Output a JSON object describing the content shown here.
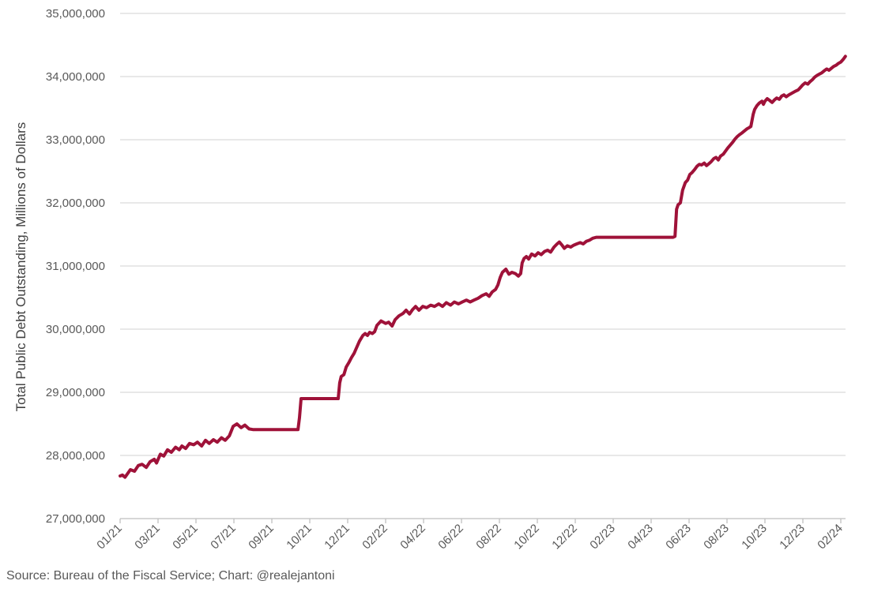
{
  "chart_data": {
    "type": "line",
    "title": "",
    "xlabel": "",
    "ylabel": "Total Public Debt Outstanding, Millions of Dollars",
    "source_note": "Source: Bureau of the Fiscal Service; Chart: @realejantoni",
    "line_color": "#9F1239",
    "grid_color": "#D9D9D9",
    "axis_color": "#BFBFBF",
    "tick_label_color": "#595959",
    "axis_title_color": "#404040",
    "ylim": [
      27000000,
      35000000
    ],
    "grid": true,
    "legend": "none",
    "yticks": [
      {
        "value": 35000000,
        "label": "35,000,000"
      },
      {
        "value": 34000000,
        "label": "34,000,000"
      },
      {
        "value": 33000000,
        "label": "33,000,000"
      },
      {
        "value": 32000000,
        "label": "32,000,000"
      },
      {
        "value": 31000000,
        "label": "31,000,000"
      },
      {
        "value": 30000000,
        "label": "30,000,000"
      },
      {
        "value": 29000000,
        "label": "29,000,000"
      },
      {
        "value": 28000000,
        "label": "28,000,000"
      },
      {
        "value": 27000000,
        "label": "27,000,000"
      }
    ],
    "xticks": [
      "01/21",
      "03/21",
      "05/21",
      "07/21",
      "09/21",
      "10/21",
      "12/21",
      "02/22",
      "04/22",
      "06/22",
      "08/22",
      "10/22",
      "12/22",
      "02/23",
      "04/23",
      "06/23",
      "08/23",
      "10/23",
      "12/23",
      "02/24"
    ],
    "series": [
      {
        "name": "Total Public Debt Outstanding",
        "points": [
          [
            0,
            27675000
          ],
          [
            0.06,
            27690000
          ],
          [
            0.13,
            27655000
          ],
          [
            0.27,
            27775000
          ],
          [
            0.38,
            27750000
          ],
          [
            0.48,
            27840000
          ],
          [
            0.58,
            27860000
          ],
          [
            0.69,
            27810000
          ],
          [
            0.79,
            27900000
          ],
          [
            0.9,
            27940000
          ],
          [
            0.96,
            27880000
          ],
          [
            1.06,
            28020000
          ],
          [
            1.15,
            27990000
          ],
          [
            1.25,
            28090000
          ],
          [
            1.35,
            28050000
          ],
          [
            1.46,
            28130000
          ],
          [
            1.56,
            28090000
          ],
          [
            1.63,
            28150000
          ],
          [
            1.73,
            28110000
          ],
          [
            1.83,
            28190000
          ],
          [
            1.94,
            28170000
          ],
          [
            2.04,
            28210000
          ],
          [
            2.15,
            28150000
          ],
          [
            2.25,
            28240000
          ],
          [
            2.35,
            28190000
          ],
          [
            2.46,
            28250000
          ],
          [
            2.56,
            28210000
          ],
          [
            2.67,
            28280000
          ],
          [
            2.77,
            28240000
          ],
          [
            2.88,
            28310000
          ],
          [
            2.98,
            28460000
          ],
          [
            3.08,
            28500000
          ],
          [
            3.19,
            28440000
          ],
          [
            3.29,
            28480000
          ],
          [
            3.4,
            28420000
          ],
          [
            3.5,
            28410000
          ],
          [
            4.69,
            28410000
          ],
          [
            4.73,
            28600000
          ],
          [
            4.77,
            28900000
          ],
          [
            5.75,
            28900000
          ],
          [
            5.79,
            29150000
          ],
          [
            5.83,
            29250000
          ],
          [
            5.9,
            29280000
          ],
          [
            5.96,
            29400000
          ],
          [
            6.04,
            29480000
          ],
          [
            6.1,
            29550000
          ],
          [
            6.17,
            29620000
          ],
          [
            6.23,
            29700000
          ],
          [
            6.31,
            29810000
          ],
          [
            6.4,
            29900000
          ],
          [
            6.46,
            29930000
          ],
          [
            6.52,
            29900000
          ],
          [
            6.58,
            29950000
          ],
          [
            6.65,
            29930000
          ],
          [
            6.71,
            29960000
          ],
          [
            6.77,
            30060000
          ],
          [
            6.88,
            30130000
          ],
          [
            7.0,
            30090000
          ],
          [
            7.08,
            30110000
          ],
          [
            7.17,
            30050000
          ],
          [
            7.25,
            30150000
          ],
          [
            7.35,
            30210000
          ],
          [
            7.46,
            30250000
          ],
          [
            7.54,
            30300000
          ],
          [
            7.63,
            30240000
          ],
          [
            7.71,
            30310000
          ],
          [
            7.79,
            30360000
          ],
          [
            7.88,
            30300000
          ],
          [
            7.98,
            30360000
          ],
          [
            8.08,
            30340000
          ],
          [
            8.19,
            30380000
          ],
          [
            8.29,
            30360000
          ],
          [
            8.4,
            30400000
          ],
          [
            8.5,
            30360000
          ],
          [
            8.6,
            30420000
          ],
          [
            8.71,
            30380000
          ],
          [
            8.81,
            30430000
          ],
          [
            8.92,
            30400000
          ],
          [
            9.02,
            30430000
          ],
          [
            9.13,
            30460000
          ],
          [
            9.23,
            30430000
          ],
          [
            9.33,
            30460000
          ],
          [
            9.44,
            30490000
          ],
          [
            9.54,
            30530000
          ],
          [
            9.65,
            30560000
          ],
          [
            9.73,
            30520000
          ],
          [
            9.81,
            30590000
          ],
          [
            9.9,
            30630000
          ],
          [
            9.96,
            30700000
          ],
          [
            10.02,
            30820000
          ],
          [
            10.08,
            30900000
          ],
          [
            10.17,
            30950000
          ],
          [
            10.25,
            30870000
          ],
          [
            10.33,
            30900000
          ],
          [
            10.42,
            30880000
          ],
          [
            10.5,
            30840000
          ],
          [
            10.56,
            30880000
          ],
          [
            10.6,
            31050000
          ],
          [
            10.65,
            31120000
          ],
          [
            10.71,
            31150000
          ],
          [
            10.77,
            31110000
          ],
          [
            10.85,
            31190000
          ],
          [
            10.94,
            31160000
          ],
          [
            11.02,
            31210000
          ],
          [
            11.1,
            31180000
          ],
          [
            11.19,
            31230000
          ],
          [
            11.27,
            31250000
          ],
          [
            11.35,
            31220000
          ],
          [
            11.44,
            31300000
          ],
          [
            11.52,
            31350000
          ],
          [
            11.58,
            31380000
          ],
          [
            11.65,
            31330000
          ],
          [
            11.71,
            31280000
          ],
          [
            11.79,
            31320000
          ],
          [
            11.88,
            31300000
          ],
          [
            11.96,
            31330000
          ],
          [
            12.04,
            31350000
          ],
          [
            12.13,
            31370000
          ],
          [
            12.21,
            31350000
          ],
          [
            12.29,
            31390000
          ],
          [
            12.38,
            31410000
          ],
          [
            12.46,
            31440000
          ],
          [
            12.56,
            31455000
          ],
          [
            14.58,
            31455000
          ],
          [
            14.63,
            31470000
          ],
          [
            14.67,
            31900000
          ],
          [
            14.71,
            31970000
          ],
          [
            14.77,
            32000000
          ],
          [
            14.83,
            32200000
          ],
          [
            14.9,
            32320000
          ],
          [
            14.96,
            32360000
          ],
          [
            15.02,
            32450000
          ],
          [
            15.08,
            32480000
          ],
          [
            15.15,
            32530000
          ],
          [
            15.21,
            32580000
          ],
          [
            15.27,
            32610000
          ],
          [
            15.33,
            32600000
          ],
          [
            15.4,
            32630000
          ],
          [
            15.46,
            32590000
          ],
          [
            15.52,
            32620000
          ],
          [
            15.58,
            32650000
          ],
          [
            15.65,
            32700000
          ],
          [
            15.71,
            32720000
          ],
          [
            15.77,
            32680000
          ],
          [
            15.83,
            32740000
          ],
          [
            15.9,
            32770000
          ],
          [
            15.96,
            32820000
          ],
          [
            16.02,
            32870000
          ],
          [
            16.08,
            32910000
          ],
          [
            16.15,
            32960000
          ],
          [
            16.21,
            33010000
          ],
          [
            16.27,
            33050000
          ],
          [
            16.33,
            33080000
          ],
          [
            16.4,
            33110000
          ],
          [
            16.46,
            33140000
          ],
          [
            16.52,
            33170000
          ],
          [
            16.58,
            33190000
          ],
          [
            16.63,
            33210000
          ],
          [
            16.69,
            33400000
          ],
          [
            16.73,
            33480000
          ],
          [
            16.79,
            33540000
          ],
          [
            16.85,
            33580000
          ],
          [
            16.92,
            33610000
          ],
          [
            16.96,
            33560000
          ],
          [
            17.0,
            33610000
          ],
          [
            17.06,
            33650000
          ],
          [
            17.13,
            33620000
          ],
          [
            17.19,
            33590000
          ],
          [
            17.25,
            33630000
          ],
          [
            17.31,
            33660000
          ],
          [
            17.38,
            33640000
          ],
          [
            17.44,
            33690000
          ],
          [
            17.5,
            33710000
          ],
          [
            17.56,
            33680000
          ],
          [
            17.63,
            33710000
          ],
          [
            17.69,
            33730000
          ],
          [
            17.75,
            33750000
          ],
          [
            17.81,
            33770000
          ],
          [
            17.88,
            33790000
          ],
          [
            17.94,
            33830000
          ],
          [
            18.0,
            33870000
          ],
          [
            18.06,
            33900000
          ],
          [
            18.13,
            33880000
          ],
          [
            18.19,
            33920000
          ],
          [
            18.25,
            33950000
          ],
          [
            18.31,
            33990000
          ],
          [
            18.38,
            34020000
          ],
          [
            18.44,
            34040000
          ],
          [
            18.5,
            34060000
          ],
          [
            18.56,
            34090000
          ],
          [
            18.63,
            34120000
          ],
          [
            18.69,
            34100000
          ],
          [
            18.75,
            34130000
          ],
          [
            18.81,
            34160000
          ],
          [
            18.88,
            34180000
          ],
          [
            18.94,
            34210000
          ],
          [
            19.0,
            34230000
          ],
          [
            19.06,
            34270000
          ],
          [
            19.12,
            34320000
          ]
        ]
      }
    ]
  }
}
